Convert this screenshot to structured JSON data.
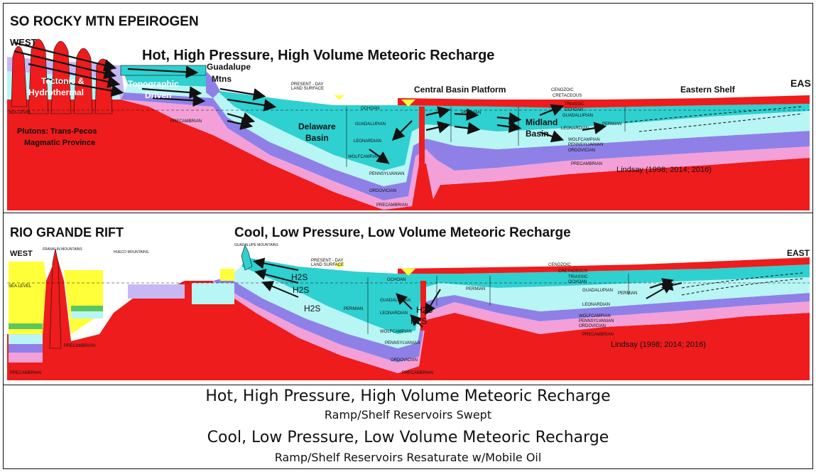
{
  "colors": {
    "red": "#ee1c1c",
    "cyan_dark": "#2fd0d0",
    "cyan_light": "#b8f5f5",
    "pink": "#f3a0d8",
    "purple": "#8f80e8",
    "lavender": "#c7b8f3",
    "yellow": "#ffff3a",
    "green": "#5cc85c",
    "text": "#111111"
  },
  "top_panel": {
    "title": "SO ROCKY MTN EPEIROGEN",
    "heading": "Hot, High Pressure, High Volume Meteoric Recharge",
    "west": "WEST",
    "east": "EAS",
    "guadalupe": "Guadalupe",
    "mtns": "Mtns",
    "tectonic": "Tectonic &",
    "hydrothermal": "Hydrothermal",
    "topographic": "Topographic",
    "driven": "Driven",
    "central_basin_platform": "Central Basin Platform",
    "eastern_shelf": "Eastern Shelf",
    "delaware": "Delaware",
    "basin": "Basin",
    "midland": "Midland",
    "midland_basin": "Basin",
    "plutons_1": "Plutons: Trans-Pecos",
    "plutons_2": "Magmatic Province",
    "present_day_1": "PRESENT - DAY",
    "present_day_2": "LAND SURFACE",
    "cenozoic": "CENOZOIC",
    "cretaceous": "CRETACEOUS",
    "triassic": "TRIASSIC",
    "ochoan": "OCHOAN",
    "guadalupian": "GUADALUPIAN",
    "leonardian": "LEONARDIAN",
    "wolfcampian": "WOLFCAMPIAN",
    "pennsylvanian": "PENNSYLVANIAN",
    "ordovician": "ORDOVICIAN",
    "precambrian": "PRECAMBRIAN",
    "permian": "PERMIAN",
    "sea_level": "SEA LEVEL",
    "citation": "Lindsay (1998; 2014; 2016)"
  },
  "bottom_panel": {
    "title": "RIO GRANDE RIFT",
    "heading": "Cool, Low Pressure, Low Volume Meteoric Recharge",
    "west": "WEST",
    "east": "EAST",
    "franklin": "FRANKLIN MOUNTAINS",
    "hueco": "HUECO MOUNTAINS",
    "guadalupe": "GUADALUPE MOUNTAINS",
    "present_day_1": "PRESENT - DAY",
    "present_day_2": "LAND SURFACE",
    "cenozoic": "CENOZOIC",
    "cretaceous": "CRETACEOUS",
    "triassic": "TRIASSIC",
    "ochoan": "OCHOAN",
    "guadalupian": "GUADALUPIAN",
    "leonardian": "LEONARDIAN",
    "wolfcampian": "WOLFCAMPIAN",
    "pennsylvanian": "PENNSYLVANIAN",
    "ordovician": "ORDOVICIAN",
    "precambrian": "PRECAMBRIAN",
    "permian": "PERMIAN",
    "sea_level": "SEA LEVEL",
    "h2s": "H2S",
    "citation": "Lindsay (1998; 2014; 2016)"
  },
  "captions": {
    "line1": "Hot, High Pressure, High Volume Meteoric Recharge",
    "line2": "Ramp/Shelf Reservoirs Swept",
    "line3": "Cool, Low Pressure, Low Volume Meteoric Recharge",
    "line4": "Ramp/Shelf Reservoirs Resaturate w/Mobile Oil"
  }
}
